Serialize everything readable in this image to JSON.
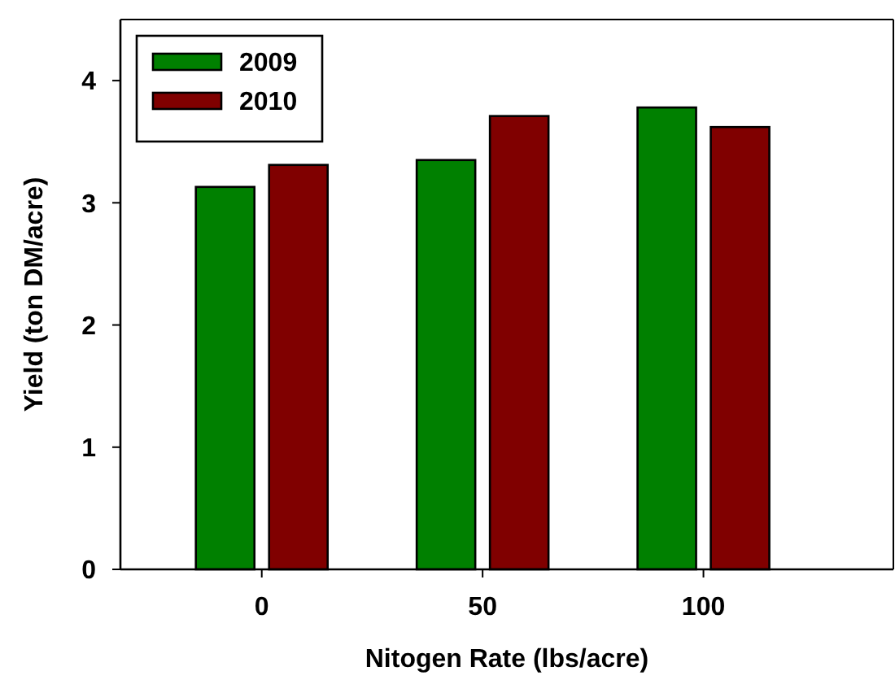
{
  "chart_data": {
    "type": "bar",
    "xlabel": "Nitogen Rate (lbs/acre)",
    "ylabel": "Yield (ton DM/acre)",
    "categories": [
      "0",
      "50",
      "100"
    ],
    "series": [
      {
        "name": "2009",
        "color": "#008000",
        "values": [
          3.13,
          3.35,
          3.78
        ]
      },
      {
        "name": "2010",
        "color": "#800000",
        "values": [
          3.31,
          3.71,
          3.62
        ]
      }
    ],
    "ylim": [
      0,
      4.5
    ],
    "yticks": [
      0,
      1,
      2,
      3,
      4
    ],
    "legend": "top left",
    "grid": false
  }
}
